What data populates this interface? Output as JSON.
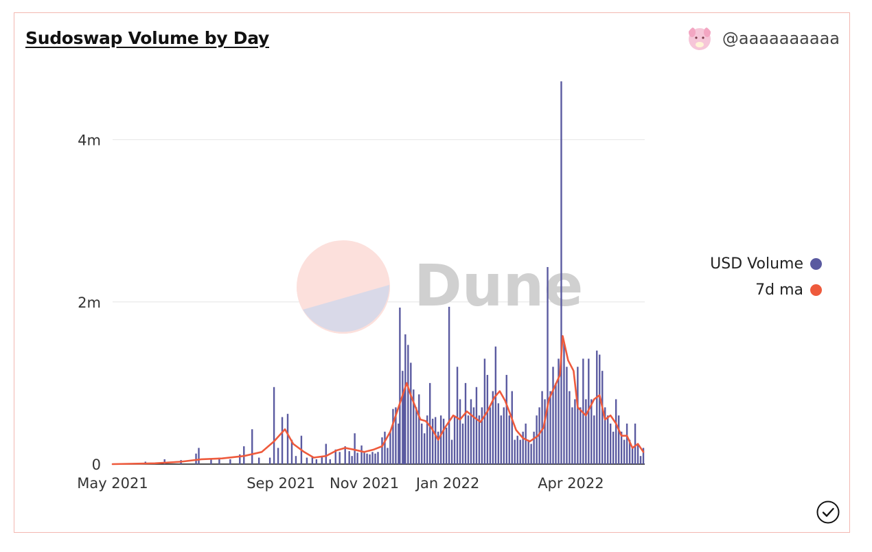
{
  "header": {
    "title": "Sudoswap Volume by Day"
  },
  "author": {
    "name": "@aaaaaaaaaa",
    "avatar_icon": "pink-creature-avatar-icon"
  },
  "watermark": {
    "text": "Dune"
  },
  "legend": [
    {
      "label": "USD Volume",
      "color": "#5a5aa0"
    },
    {
      "label": "7d ma",
      "color": "#ee5a3c"
    }
  ],
  "chart_data": {
    "type": "bar",
    "title": "Sudoswap Volume by Day",
    "xlabel": "",
    "ylabel": "",
    "x_ticks": [
      "May 2021",
      "Sep 2021",
      "Nov 2021",
      "Jan 2022",
      "Apr 2022"
    ],
    "y_ticks": [
      "0",
      "2m",
      "4m"
    ],
    "ylim": [
      0,
      4800000
    ],
    "grid": true,
    "legend_placement": "right",
    "series": [
      {
        "name": "USD Volume",
        "type": "bar",
        "points": [
          [
            "2021-05-25",
            30000
          ],
          [
            "2021-06-08",
            60000
          ],
          [
            "2021-06-20",
            50000
          ],
          [
            "2021-07-01",
            130000
          ],
          [
            "2021-07-03",
            200000
          ],
          [
            "2021-07-12",
            60000
          ],
          [
            "2021-07-18",
            80000
          ],
          [
            "2021-07-26",
            60000
          ],
          [
            "2021-08-02",
            120000
          ],
          [
            "2021-08-05",
            220000
          ],
          [
            "2021-08-11",
            430000
          ],
          [
            "2021-08-16",
            80000
          ],
          [
            "2021-08-24",
            80000
          ],
          [
            "2021-08-27",
            950000
          ],
          [
            "2021-08-30",
            200000
          ],
          [
            "2021-09-02",
            580000
          ],
          [
            "2021-09-06",
            620000
          ],
          [
            "2021-09-09",
            300000
          ],
          [
            "2021-09-12",
            100000
          ],
          [
            "2021-09-16",
            350000
          ],
          [
            "2021-09-20",
            80000
          ],
          [
            "2021-09-24",
            90000
          ],
          [
            "2021-09-27",
            60000
          ],
          [
            "2021-10-01",
            100000
          ],
          [
            "2021-10-04",
            250000
          ],
          [
            "2021-10-07",
            60000
          ],
          [
            "2021-10-11",
            180000
          ],
          [
            "2021-10-14",
            150000
          ],
          [
            "2021-10-18",
            220000
          ],
          [
            "2021-10-21",
            160000
          ],
          [
            "2021-10-23",
            100000
          ],
          [
            "2021-10-25",
            380000
          ],
          [
            "2021-10-27",
            140000
          ],
          [
            "2021-10-30",
            230000
          ],
          [
            "2021-11-01",
            140000
          ],
          [
            "2021-11-03",
            130000
          ],
          [
            "2021-11-05",
            120000
          ],
          [
            "2021-11-07",
            150000
          ],
          [
            "2021-11-09",
            130000
          ],
          [
            "2021-11-11",
            150000
          ],
          [
            "2021-11-14",
            330000
          ],
          [
            "2021-11-16",
            400000
          ],
          [
            "2021-11-18",
            200000
          ],
          [
            "2021-11-20",
            400000
          ],
          [
            "2021-11-22",
            680000
          ],
          [
            "2021-11-24",
            700000
          ],
          [
            "2021-11-26",
            500000
          ],
          [
            "2021-11-27",
            1930000
          ],
          [
            "2021-11-29",
            1150000
          ],
          [
            "2021-11-30",
            900000
          ],
          [
            "2021-12-01",
            1600000
          ],
          [
            "2021-12-03",
            1470000
          ],
          [
            "2021-12-05",
            1250000
          ],
          [
            "2021-12-07",
            920000
          ],
          [
            "2021-12-09",
            700000
          ],
          [
            "2021-12-11",
            860000
          ],
          [
            "2021-12-13",
            500000
          ],
          [
            "2021-12-15",
            380000
          ],
          [
            "2021-12-17",
            600000
          ],
          [
            "2021-12-19",
            1000000
          ],
          [
            "2021-12-21",
            560000
          ],
          [
            "2021-12-23",
            580000
          ],
          [
            "2021-12-25",
            400000
          ],
          [
            "2021-12-27",
            600000
          ],
          [
            "2021-12-29",
            560000
          ],
          [
            "2021-12-31",
            450000
          ],
          [
            "2022-01-02",
            1940000
          ],
          [
            "2022-01-04",
            300000
          ],
          [
            "2022-01-06",
            600000
          ],
          [
            "2022-01-08",
            1200000
          ],
          [
            "2022-01-10",
            800000
          ],
          [
            "2022-01-12",
            500000
          ],
          [
            "2022-01-14",
            1000000
          ],
          [
            "2022-01-16",
            600000
          ],
          [
            "2022-01-18",
            800000
          ],
          [
            "2022-01-20",
            700000
          ],
          [
            "2022-01-22",
            950000
          ],
          [
            "2022-01-24",
            600000
          ],
          [
            "2022-01-26",
            700000
          ],
          [
            "2022-01-28",
            1300000
          ],
          [
            "2022-01-30",
            1100000
          ],
          [
            "2022-02-01",
            700000
          ],
          [
            "2022-02-03",
            900000
          ],
          [
            "2022-02-05",
            1450000
          ],
          [
            "2022-02-07",
            750000
          ],
          [
            "2022-02-09",
            600000
          ],
          [
            "2022-02-11",
            700000
          ],
          [
            "2022-02-13",
            1100000
          ],
          [
            "2022-02-15",
            600000
          ],
          [
            "2022-02-17",
            900000
          ],
          [
            "2022-02-19",
            300000
          ],
          [
            "2022-02-21",
            350000
          ],
          [
            "2022-02-23",
            300000
          ],
          [
            "2022-02-25",
            400000
          ],
          [
            "2022-02-27",
            500000
          ],
          [
            "2022-03-01",
            300000
          ],
          [
            "2022-03-03",
            250000
          ],
          [
            "2022-03-05",
            400000
          ],
          [
            "2022-03-07",
            600000
          ],
          [
            "2022-03-09",
            700000
          ],
          [
            "2022-03-11",
            900000
          ],
          [
            "2022-03-13",
            800000
          ],
          [
            "2022-03-15",
            2430000
          ],
          [
            "2022-03-17",
            900000
          ],
          [
            "2022-03-19",
            1200000
          ],
          [
            "2022-03-21",
            1000000
          ],
          [
            "2022-03-23",
            1300000
          ],
          [
            "2022-03-25",
            4720000
          ],
          [
            "2022-03-27",
            1500000
          ],
          [
            "2022-03-29",
            1200000
          ],
          [
            "2022-03-31",
            900000
          ],
          [
            "2022-04-02",
            700000
          ],
          [
            "2022-04-04",
            800000
          ],
          [
            "2022-04-06",
            1200000
          ],
          [
            "2022-04-08",
            700000
          ],
          [
            "2022-04-10",
            1300000
          ],
          [
            "2022-04-12",
            800000
          ],
          [
            "2022-04-14",
            1300000
          ],
          [
            "2022-04-16",
            800000
          ],
          [
            "2022-04-18",
            600000
          ],
          [
            "2022-04-20",
            1400000
          ],
          [
            "2022-04-22",
            1350000
          ],
          [
            "2022-04-24",
            1150000
          ],
          [
            "2022-04-26",
            700000
          ],
          [
            "2022-04-28",
            600000
          ],
          [
            "2022-04-30",
            500000
          ],
          [
            "2022-05-02",
            400000
          ],
          [
            "2022-05-04",
            800000
          ],
          [
            "2022-05-06",
            600000
          ],
          [
            "2022-05-08",
            400000
          ],
          [
            "2022-05-10",
            300000
          ],
          [
            "2022-05-12",
            500000
          ],
          [
            "2022-05-14",
            300000
          ],
          [
            "2022-05-16",
            200000
          ],
          [
            "2022-05-18",
            500000
          ],
          [
            "2022-05-20",
            250000
          ],
          [
            "2022-05-22",
            100000
          ],
          [
            "2022-05-24",
            200000
          ]
        ]
      },
      {
        "name": "7d ma",
        "type": "line",
        "points": [
          [
            "2021-05-01",
            0
          ],
          [
            "2021-06-01",
            10000
          ],
          [
            "2021-06-20",
            30000
          ],
          [
            "2021-07-05",
            60000
          ],
          [
            "2021-07-20",
            70000
          ],
          [
            "2021-08-05",
            100000
          ],
          [
            "2021-08-18",
            150000
          ],
          [
            "2021-08-27",
            280000
          ],
          [
            "2021-09-04",
            430000
          ],
          [
            "2021-09-10",
            250000
          ],
          [
            "2021-09-18",
            150000
          ],
          [
            "2021-09-25",
            80000
          ],
          [
            "2021-10-04",
            100000
          ],
          [
            "2021-10-12",
            170000
          ],
          [
            "2021-10-18",
            200000
          ],
          [
            "2021-10-24",
            180000
          ],
          [
            "2021-11-01",
            150000
          ],
          [
            "2021-11-08",
            180000
          ],
          [
            "2021-11-14",
            220000
          ],
          [
            "2021-11-20",
            400000
          ],
          [
            "2021-11-26",
            700000
          ],
          [
            "2021-11-29",
            850000
          ],
          [
            "2021-12-02",
            1000000
          ],
          [
            "2021-12-05",
            850000
          ],
          [
            "2021-12-08",
            720000
          ],
          [
            "2021-12-12",
            550000
          ],
          [
            "2021-12-16",
            530000
          ],
          [
            "2021-12-20",
            450000
          ],
          [
            "2021-12-25",
            300000
          ],
          [
            "2021-12-30",
            450000
          ],
          [
            "2022-01-05",
            600000
          ],
          [
            "2022-01-10",
            550000
          ],
          [
            "2022-01-15",
            650000
          ],
          [
            "2022-01-20",
            580000
          ],
          [
            "2022-01-25",
            520000
          ],
          [
            "2022-01-30",
            650000
          ],
          [
            "2022-02-04",
            820000
          ],
          [
            "2022-02-08",
            900000
          ],
          [
            "2022-02-12",
            780000
          ],
          [
            "2022-02-16",
            600000
          ],
          [
            "2022-02-20",
            420000
          ],
          [
            "2022-02-25",
            320000
          ],
          [
            "2022-03-02",
            280000
          ],
          [
            "2022-03-08",
            350000
          ],
          [
            "2022-03-12",
            450000
          ],
          [
            "2022-03-16",
            800000
          ],
          [
            "2022-03-20",
            950000
          ],
          [
            "2022-03-24",
            1100000
          ],
          [
            "2022-03-26",
            1580000
          ],
          [
            "2022-03-30",
            1280000
          ],
          [
            "2022-04-03",
            1150000
          ],
          [
            "2022-04-06",
            700000
          ],
          [
            "2022-04-12",
            600000
          ],
          [
            "2022-04-18",
            800000
          ],
          [
            "2022-04-22",
            850000
          ],
          [
            "2022-04-26",
            550000
          ],
          [
            "2022-04-30",
            600000
          ],
          [
            "2022-05-04",
            500000
          ],
          [
            "2022-05-08",
            350000
          ],
          [
            "2022-05-12",
            350000
          ],
          [
            "2022-05-16",
            200000
          ],
          [
            "2022-05-20",
            250000
          ],
          [
            "2022-05-24",
            150000
          ]
        ]
      }
    ]
  }
}
